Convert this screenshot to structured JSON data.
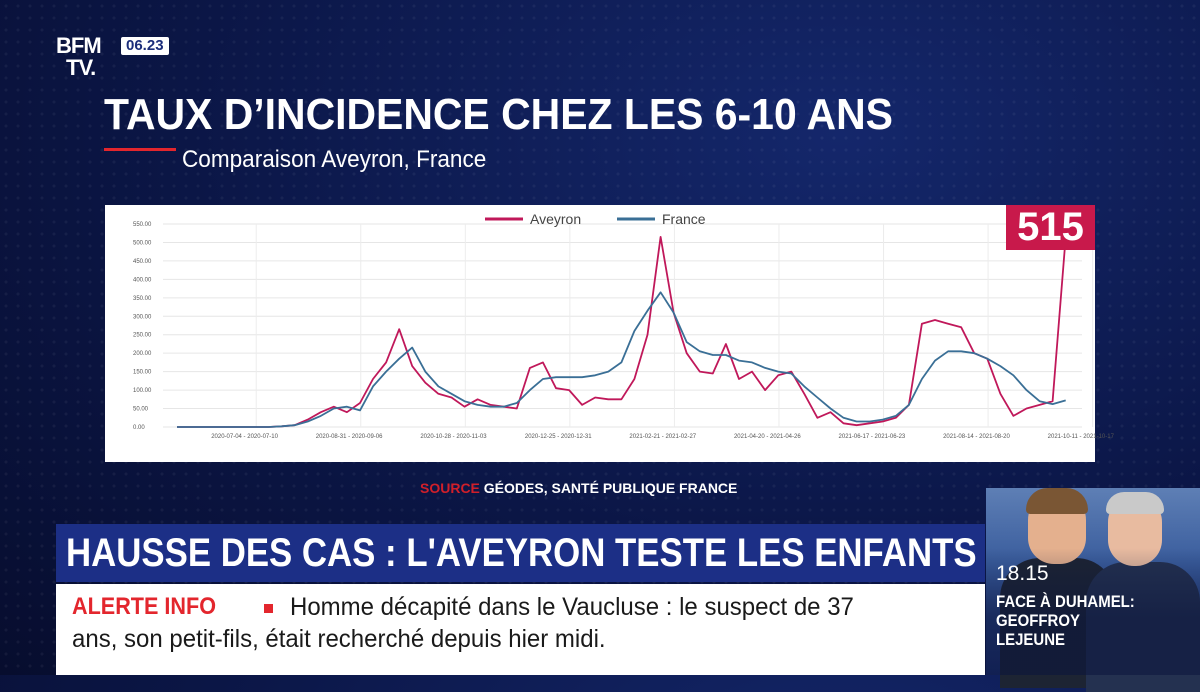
{
  "header": {
    "logo_line1": "BFM",
    "logo_line2": "TV.",
    "clock": "06.23"
  },
  "title": "TAUX D’INCIDENCE CHEZ LES 6-10 ANS",
  "subtitle": "Comparaison Aveyron, France",
  "badge": "515",
  "source": {
    "label": "SOURCE",
    "text": "GÉODES, SANTÉ PUBLIQUE FRANCE"
  },
  "headline": "HAUSSE DES CAS : L'AVEYRON TESTE LES ENFANTS",
  "ticker": {
    "label": "ALERTE INFO",
    "line1": "Homme décapité dans le Vaucluse : le suspect de 37",
    "line2": "ans, son petit-fils, était recherché depuis hier midi."
  },
  "inset": {
    "time": "18.15",
    "show_line1": "FACE À DUHAMEL:",
    "show_line2": "GEOFFROY",
    "show_line3": "LEJEUNE"
  },
  "colors": {
    "aveyron": "#c0185a",
    "france": "#3a6f96",
    "badge": "#c8194b",
    "alert": "#e3262d",
    "headline_bg": "#1c2f86"
  },
  "chart_data": {
    "type": "line",
    "ylim": [
      0,
      550
    ],
    "yticks": [
      "0.00",
      "50.00",
      "100.00",
      "150.00",
      "200.00",
      "250.00",
      "300.00",
      "350.00",
      "400.00",
      "450.00",
      "500.00",
      "550.00"
    ],
    "xticks": [
      {
        "label": "2020-07-04 - 2020-07-10",
        "i": 3
      },
      {
        "label": "2020-08-31 - 2020-09-06",
        "i": 11
      },
      {
        "label": "2020-10-28 - 2020-11-03",
        "i": 19
      },
      {
        "label": "2020-12-25 - 2020-12-31",
        "i": 27
      },
      {
        "label": "2021-02-21 - 2021-02-27",
        "i": 35
      },
      {
        "label": "2021-04-20 - 2021-04-26",
        "i": 43
      },
      {
        "label": "2021-06-17 - 2021-06-23",
        "i": 51
      },
      {
        "label": "2021-08-14 - 2021-08-20",
        "i": 59
      },
      {
        "label": "2021-10-11 - 2021-10-17",
        "i": 67
      }
    ],
    "n_points": 69,
    "series": [
      {
        "name": "Aveyron",
        "values": [
          0,
          0,
          0,
          0,
          0,
          0,
          0,
          0,
          2,
          5,
          20,
          40,
          55,
          40,
          65,
          130,
          175,
          265,
          165,
          120,
          90,
          80,
          55,
          75,
          60,
          55,
          50,
          160,
          175,
          105,
          100,
          60,
          80,
          75,
          75,
          130,
          250,
          515,
          310,
          200,
          150,
          145,
          225,
          130,
          150,
          100,
          140,
          150,
          90,
          25,
          40,
          10,
          5,
          10,
          15,
          25,
          60,
          280,
          290,
          280,
          270,
          200,
          185,
          90,
          30,
          50,
          60,
          70,
          515
        ]
      },
      {
        "name": "France",
        "values": [
          0,
          0,
          0,
          0,
          0,
          0,
          0,
          0,
          2,
          5,
          15,
          30,
          50,
          55,
          45,
          110,
          150,
          185,
          215,
          150,
          110,
          90,
          70,
          60,
          55,
          55,
          65,
          100,
          130,
          135,
          135,
          135,
          140,
          150,
          175,
          260,
          315,
          365,
          310,
          230,
          205,
          195,
          195,
          180,
          175,
          160,
          150,
          145,
          110,
          80,
          50,
          25,
          15,
          15,
          20,
          30,
          60,
          130,
          180,
          205,
          205,
          200,
          185,
          165,
          140,
          100,
          70,
          62,
          72
        ]
      }
    ]
  }
}
